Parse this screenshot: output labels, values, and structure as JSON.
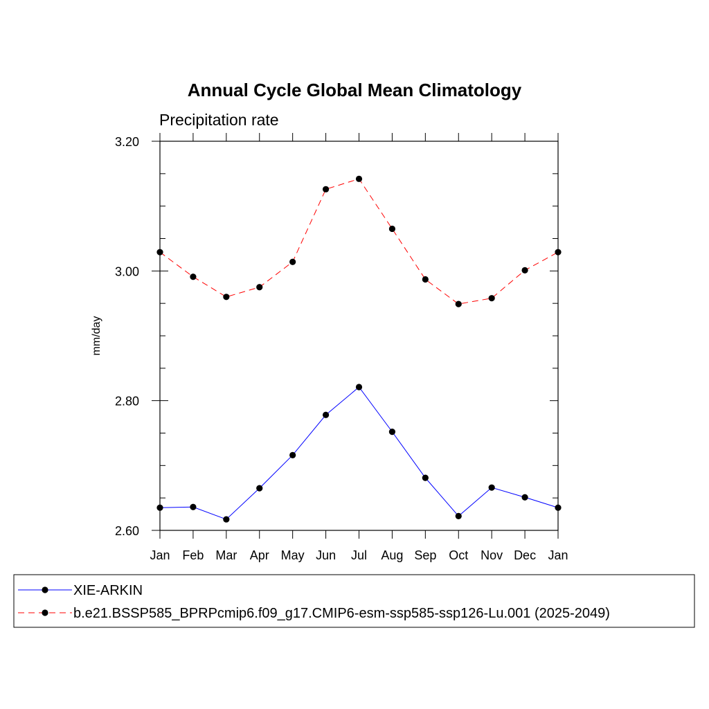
{
  "chart_data": {
    "type": "line",
    "title": "Annual Cycle Global Mean Climatology",
    "subtitle": "Precipitation rate",
    "xlabel": "",
    "ylabel": "mm/day",
    "categories": [
      "Jan",
      "Feb",
      "Mar",
      "Apr",
      "May",
      "Jun",
      "Jul",
      "Aug",
      "Sep",
      "Oct",
      "Nov",
      "Dec",
      "Jan"
    ],
    "ylim": [
      2.6,
      3.2
    ],
    "yticks": [
      "2.60",
      "2.80",
      "3.00",
      "3.20"
    ],
    "yticks_values": [
      2.6,
      2.8,
      3.0,
      3.2
    ],
    "grid": false,
    "legend_position": "bottom",
    "series": [
      {
        "name": "XIE-ARKIN",
        "color": "#0000ff",
        "dash": "solid",
        "marker": "filled-circle",
        "values": [
          2.635,
          2.636,
          2.617,
          2.665,
          2.716,
          2.778,
          2.821,
          2.752,
          2.681,
          2.622,
          2.666,
          2.651,
          2.635
        ]
      },
      {
        "name": "b.e21.BSSP585_BPRPcmip6.f09_g17.CMIP6-esm-ssp585-ssp126-Lu.001 (2025-2049)",
        "color": "#ff0000",
        "dash": "dashed",
        "marker": "filled-circle",
        "values": [
          3.029,
          2.991,
          2.96,
          2.975,
          3.014,
          3.126,
          3.142,
          3.065,
          2.987,
          2.949,
          2.958,
          3.001,
          3.029
        ]
      }
    ]
  }
}
